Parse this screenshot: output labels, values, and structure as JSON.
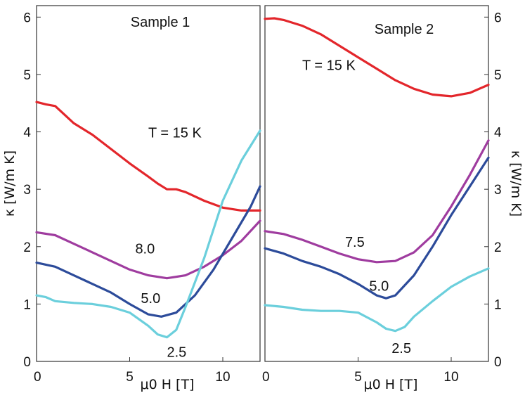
{
  "colors": {
    "15K": "#e3262b",
    "8.0": "#9f3c9f",
    "7.5": "#9f3c9f",
    "5.0": "#2c4b9a",
    "2.5": "#6bcfdc",
    "axis": "#333333"
  },
  "chart_data": [
    {
      "type": "line",
      "title": "Sample 1",
      "xlabel": "μ0 H [T]",
      "ylabel": "κ [W/m K]",
      "xlim": [
        0,
        12
      ],
      "ylim": [
        0,
        6.2
      ],
      "xticks": [
        0,
        5,
        10
      ],
      "yticks": [
        0,
        1,
        2,
        3,
        4,
        5,
        6
      ],
      "ytick_side": "left",
      "series": [
        {
          "name": "T = 15 K",
          "color_key": "15K",
          "label_x": 6.0,
          "label_y": 3.9,
          "x": [
            0,
            0.5,
            1.0,
            1.5,
            2.0,
            3.0,
            4.0,
            5.0,
            6.0,
            6.5,
            7.0,
            7.5,
            8.0,
            9.0,
            10.0,
            11.0,
            12.0
          ],
          "y": [
            4.52,
            4.48,
            4.45,
            4.3,
            4.15,
            3.95,
            3.7,
            3.45,
            3.22,
            3.1,
            3.0,
            3.0,
            2.95,
            2.8,
            2.68,
            2.63,
            2.63
          ]
        },
        {
          "name": "8.0",
          "color_key": "8.0",
          "label_x": 5.3,
          "label_y": 1.88,
          "x": [
            0,
            1.0,
            2.0,
            3.0,
            4.0,
            5.0,
            6.0,
            7.0,
            8.0,
            9.0,
            10.0,
            11.0,
            12.0
          ],
          "y": [
            2.25,
            2.2,
            2.05,
            1.9,
            1.75,
            1.6,
            1.5,
            1.45,
            1.5,
            1.65,
            1.85,
            2.1,
            2.45
          ]
        },
        {
          "name": "5.0",
          "color_key": "5.0",
          "label_x": 5.6,
          "label_y": 1.02,
          "x": [
            0,
            1.0,
            2.0,
            3.0,
            4.0,
            5.0,
            6.0,
            6.7,
            7.5,
            8.5,
            9.5,
            10.5,
            11.5,
            12.0
          ],
          "y": [
            1.72,
            1.65,
            1.5,
            1.35,
            1.2,
            1.0,
            0.82,
            0.78,
            0.85,
            1.15,
            1.6,
            2.15,
            2.7,
            3.05
          ]
        },
        {
          "name": "2.5",
          "color_key": "2.5",
          "label_x": 7.0,
          "label_y": 0.08,
          "x": [
            0,
            0.5,
            1.0,
            2.0,
            3.0,
            4.0,
            5.0,
            6.0,
            6.5,
            7.0,
            7.5,
            8.0,
            9.0,
            10.0,
            11.0,
            12.0
          ],
          "y": [
            1.15,
            1.12,
            1.05,
            1.02,
            1.0,
            0.95,
            0.85,
            0.62,
            0.47,
            0.42,
            0.55,
            0.95,
            1.8,
            2.8,
            3.5,
            4.02
          ]
        }
      ]
    },
    {
      "type": "line",
      "title": "Sample 2",
      "xlabel": "μ0 H [T]",
      "ylabel": "κ [W/m K]",
      "xlim": [
        0,
        12
      ],
      "ylim": [
        0,
        6.2
      ],
      "xticks": [
        0,
        5,
        10
      ],
      "yticks": [
        0,
        1,
        2,
        3,
        4,
        5,
        6
      ],
      "ytick_side": "right",
      "series": [
        {
          "name": "T = 15 K",
          "color_key": "15K",
          "label_x": 2.0,
          "label_y": 5.08,
          "x": [
            0,
            0.5,
            1.0,
            2.0,
            3.0,
            4.0,
            5.0,
            6.0,
            7.0,
            8.0,
            9.0,
            10.0,
            11.0,
            12.0
          ],
          "y": [
            5.97,
            5.98,
            5.95,
            5.85,
            5.7,
            5.5,
            5.3,
            5.1,
            4.9,
            4.75,
            4.65,
            4.62,
            4.68,
            4.82
          ]
        },
        {
          "name": "7.5",
          "color_key": "7.5",
          "label_x": 4.3,
          "label_y": 2.0,
          "x": [
            0,
            1.0,
            2.0,
            3.0,
            4.0,
            5.0,
            6.0,
            7.0,
            8.0,
            9.0,
            10.0,
            11.0,
            12.0
          ],
          "y": [
            2.27,
            2.22,
            2.12,
            2.0,
            1.88,
            1.78,
            1.73,
            1.75,
            1.9,
            2.2,
            2.7,
            3.25,
            3.85
          ]
        },
        {
          "name": "5.0",
          "color_key": "5.0",
          "label_x": 5.6,
          "label_y": 1.23,
          "x": [
            0,
            1.0,
            2.0,
            3.0,
            4.0,
            5.0,
            6.0,
            6.5,
            7.0,
            8.0,
            9.0,
            10.0,
            11.0,
            12.0
          ],
          "y": [
            1.97,
            1.88,
            1.75,
            1.65,
            1.52,
            1.35,
            1.15,
            1.1,
            1.15,
            1.5,
            2.0,
            2.55,
            3.05,
            3.55
          ]
        },
        {
          "name": "2.5",
          "color_key": "2.5",
          "label_x": 6.8,
          "label_y": 0.15,
          "x": [
            0,
            1.0,
            2.0,
            3.0,
            4.0,
            5.0,
            6.0,
            6.5,
            7.0,
            7.5,
            8.0,
            9.0,
            10.0,
            11.0,
            12.0
          ],
          "y": [
            0.98,
            0.95,
            0.9,
            0.88,
            0.88,
            0.85,
            0.68,
            0.57,
            0.53,
            0.6,
            0.78,
            1.05,
            1.3,
            1.48,
            1.62
          ]
        }
      ]
    }
  ]
}
